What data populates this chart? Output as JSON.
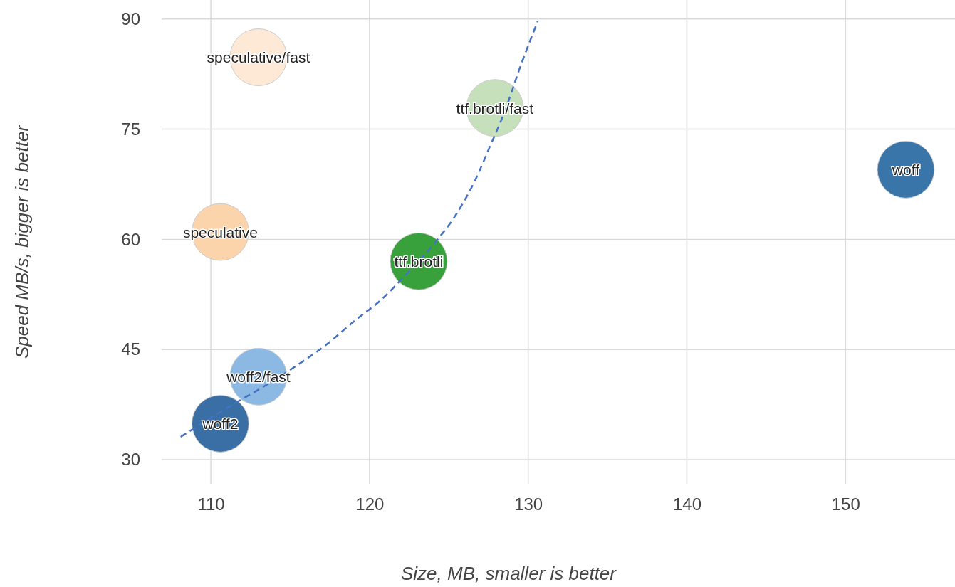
{
  "chart_data": {
    "type": "bubble",
    "xlabel": "Size, MB, smaller is better",
    "ylabel": "Speed MB/s, bigger is better",
    "xlim": [
      106.9,
      156.9
    ],
    "ylim": [
      26.7,
      92.6
    ],
    "xticks": [
      110,
      120,
      130,
      140,
      150
    ],
    "yticks": [
      30,
      45,
      60,
      75,
      90
    ],
    "grid": true,
    "legend": false,
    "series": [
      {
        "name": "speculative/fast",
        "color": "#fde9d6",
        "x": [
          113.0
        ],
        "values": [
          84.8
        ],
        "sizes": [
          1
        ]
      },
      {
        "name": "ttf.brotli/fast",
        "color": "#c7e0bc",
        "x": [
          127.9
        ],
        "values": [
          77.9
        ],
        "sizes": [
          1
        ]
      },
      {
        "name": "woff",
        "color": "#3a75aa",
        "x": [
          153.8
        ],
        "values": [
          69.5
        ],
        "sizes": [
          1
        ]
      },
      {
        "name": "speculative",
        "color": "#fcd4ac",
        "x": [
          110.6
        ],
        "values": [
          61.0
        ],
        "sizes": [
          1
        ]
      },
      {
        "name": "ttf.brotli",
        "color": "#38a13c",
        "x": [
          123.1
        ],
        "values": [
          57.0
        ],
        "sizes": [
          1
        ]
      },
      {
        "name": "woff2/fast",
        "color": "#8bb9e3",
        "x": [
          113.0
        ],
        "values": [
          41.3
        ],
        "sizes": [
          1
        ]
      },
      {
        "name": "woff2",
        "color": "#3a6fa6",
        "x": [
          110.6
        ],
        "values": [
          34.9
        ],
        "sizes": [
          1
        ]
      },
      {
        "type": "line",
        "color": "#4472c4",
        "line_style": "dashed",
        "marker": "none",
        "x": [
          108.1,
          111.3,
          113.6,
          115.4,
          117.3,
          119.0,
          120.8,
          122.3,
          124.1,
          125.4,
          126.6,
          127.6,
          128.5,
          129.5,
          130.6
        ],
        "values": [
          33.1,
          37.4,
          40.3,
          42.8,
          45.7,
          48.8,
          51.9,
          55.2,
          59.5,
          63.2,
          67.8,
          72.7,
          77.3,
          83.5,
          89.7
        ]
      }
    ]
  }
}
